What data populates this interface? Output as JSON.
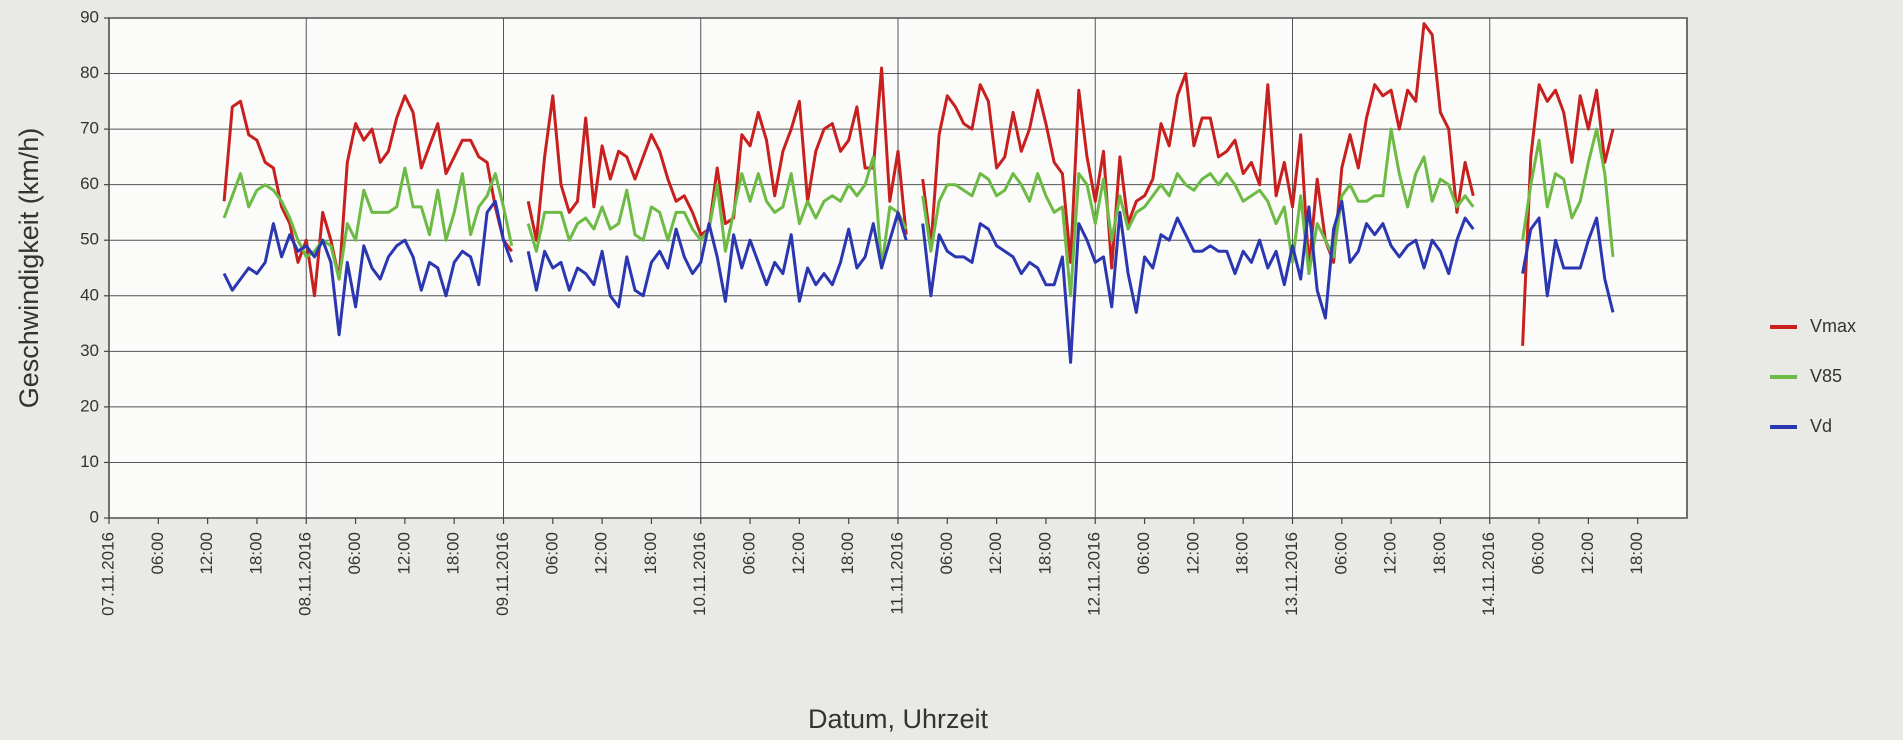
{
  "chart_data": {
    "type": "line",
    "xlabel": "Datum, Uhrzeit",
    "ylabel": "Geschwindigkeit (km/h)",
    "xlim": [
      0,
      192
    ],
    "ylim": [
      0,
      90
    ],
    "yticks": [
      0,
      10,
      20,
      30,
      40,
      50,
      60,
      70,
      80,
      90
    ],
    "xticks": [
      {
        "value": 0,
        "label": "07.11.2016"
      },
      {
        "value": 6,
        "label": "06:00"
      },
      {
        "value": 12,
        "label": "12:00"
      },
      {
        "value": 18,
        "label": "18:00"
      },
      {
        "value": 24,
        "label": "08.11.2016"
      },
      {
        "value": 30,
        "label": "06:00"
      },
      {
        "value": 36,
        "label": "12:00"
      },
      {
        "value": 42,
        "label": "18:00"
      },
      {
        "value": 48,
        "label": "09.11.2016"
      },
      {
        "value": 54,
        "label": "06:00"
      },
      {
        "value": 60,
        "label": "12:00"
      },
      {
        "value": 66,
        "label": "18:00"
      },
      {
        "value": 72,
        "label": "10.11.2016"
      },
      {
        "value": 78,
        "label": "06:00"
      },
      {
        "value": 84,
        "label": "12:00"
      },
      {
        "value": 90,
        "label": "18:00"
      },
      {
        "value": 96,
        "label": "11.11.2016"
      },
      {
        "value": 102,
        "label": "06:00"
      },
      {
        "value": 108,
        "label": "12:00"
      },
      {
        "value": 114,
        "label": "18:00"
      },
      {
        "value": 120,
        "label": "12.11.2016"
      },
      {
        "value": 126,
        "label": "06:00"
      },
      {
        "value": 132,
        "label": "12:00"
      },
      {
        "value": 138,
        "label": "18:00"
      },
      {
        "value": 144,
        "label": "13.11.2016"
      },
      {
        "value": 150,
        "label": "06:00"
      },
      {
        "value": 156,
        "label": "12:00"
      },
      {
        "value": 162,
        "label": "18:00"
      },
      {
        "value": 168,
        "label": "14.11.2016"
      },
      {
        "value": 174,
        "label": "06:00"
      },
      {
        "value": 180,
        "label": "12:00"
      },
      {
        "value": 186,
        "label": "18:00"
      }
    ],
    "xgrid_every": 24,
    "grid": true,
    "legend": "right",
    "x": [
      14,
      15,
      16,
      17,
      18,
      19,
      20,
      21,
      22,
      23,
      24,
      25,
      26,
      27,
      28,
      29,
      30,
      31,
      32,
      33,
      34,
      35,
      36,
      37,
      38,
      39,
      40,
      41,
      42,
      43,
      44,
      45,
      46,
      47,
      48,
      49,
      50,
      51,
      52,
      53,
      54,
      55,
      56,
      57,
      58,
      59,
      60,
      61,
      62,
      63,
      64,
      65,
      66,
      67,
      68,
      69,
      70,
      71,
      72,
      73,
      74,
      75,
      76,
      77,
      78,
      79,
      80,
      81,
      82,
      83,
      84,
      85,
      86,
      87,
      88,
      89,
      90,
      91,
      92,
      93,
      94,
      95,
      96,
      97,
      98,
      99,
      100,
      101,
      102,
      103,
      104,
      105,
      106,
      107,
      108,
      109,
      110,
      111,
      112,
      113,
      114,
      115,
      116,
      117,
      118,
      119,
      120,
      121,
      122,
      123,
      124,
      125,
      126,
      127,
      128,
      129,
      130,
      131,
      132,
      133,
      134,
      135,
      136,
      137,
      138,
      139,
      140,
      141,
      142,
      143,
      144,
      145,
      146,
      147,
      148,
      149,
      150,
      151,
      152,
      153,
      154,
      155,
      156,
      157,
      158,
      159,
      160,
      161,
      162,
      163,
      164,
      165,
      166,
      167,
      168,
      169,
      170,
      171,
      172,
      173,
      174,
      175,
      176,
      177,
      178,
      179,
      180,
      181,
      182,
      183
    ],
    "series": [
      {
        "name": "Vmax",
        "color": "#c8201e",
        "values": [
          57,
          74,
          75,
          69,
          68,
          64,
          63,
          56,
          53,
          46,
          50,
          40,
          55,
          50,
          43,
          64,
          71,
          68,
          70,
          64,
          66,
          72,
          76,
          73,
          63,
          67,
          71,
          62,
          65,
          68,
          68,
          65,
          64,
          56,
          50,
          48,
          null,
          57,
          50,
          65,
          76,
          60,
          55,
          57,
          72,
          56,
          67,
          61,
          66,
          65,
          61,
          65,
          69,
          66,
          61,
          57,
          58,
          55,
          51,
          52,
          63,
          53,
          54,
          69,
          67,
          73,
          68,
          58,
          66,
          70,
          75,
          57,
          66,
          70,
          71,
          66,
          68,
          74,
          63,
          63,
          81,
          57,
          66,
          51,
          null,
          61,
          49,
          69,
          76,
          74,
          71,
          70,
          78,
          75,
          63,
          65,
          73,
          66,
          70,
          77,
          71,
          64,
          62,
          46,
          77,
          65,
          57,
          66,
          45,
          65,
          53,
          57,
          58,
          61,
          71,
          67,
          76,
          80,
          67,
          72,
          72,
          65,
          66,
          68,
          62,
          64,
          60,
          78,
          58,
          64,
          56,
          69,
          45,
          61,
          50,
          46,
          63,
          69,
          63,
          72,
          78,
          76,
          77,
          70,
          77,
          75,
          89,
          87,
          73,
          70,
          55,
          64,
          58,
          null,
          null,
          null,
          null,
          null,
          31,
          65,
          78,
          75,
          77,
          73,
          64,
          76,
          70,
          77,
          64,
          70
        ]
      },
      {
        "name": "V85",
        "color": "#6dbb45",
        "values": [
          54,
          58,
          62,
          56,
          59,
          60,
          59,
          57,
          54,
          50,
          47,
          48,
          50,
          49,
          43,
          53,
          50,
          59,
          55,
          55,
          55,
          56,
          63,
          56,
          56,
          51,
          59,
          50,
          55,
          62,
          51,
          56,
          58,
          62,
          56,
          49,
          null,
          53,
          48,
          55,
          55,
          55,
          50,
          53,
          54,
          52,
          56,
          52,
          53,
          59,
          51,
          50,
          56,
          55,
          50,
          55,
          55,
          52,
          50,
          52,
          60,
          48,
          55,
          62,
          57,
          62,
          57,
          55,
          56,
          62,
          53,
          57,
          54,
          57,
          58,
          57,
          60,
          58,
          60,
          65,
          45,
          56,
          55,
          52,
          null,
          58,
          48,
          57,
          60,
          60,
          59,
          58,
          62,
          61,
          58,
          59,
          62,
          60,
          57,
          62,
          58,
          55,
          56,
          40,
          62,
          60,
          53,
          61,
          50,
          58,
          52,
          55,
          56,
          58,
          60,
          58,
          62,
          60,
          59,
          61,
          62,
          60,
          62,
          60,
          57,
          58,
          59,
          57,
          53,
          56,
          46,
          58,
          44,
          53,
          50,
          47,
          58,
          60,
          57,
          57,
          58,
          58,
          70,
          62,
          56,
          62,
          65,
          57,
          61,
          60,
          56,
          58,
          56,
          null,
          null,
          null,
          null,
          null,
          50,
          60,
          68,
          56,
          62,
          61,
          54,
          57,
          64,
          70,
          62,
          47
        ]
      },
      {
        "name": "Vd",
        "color": "#2a37b0",
        "values": [
          44,
          41,
          43,
          45,
          44,
          46,
          53,
          47,
          51,
          48,
          49,
          47,
          50,
          46,
          33,
          46,
          38,
          49,
          45,
          43,
          47,
          49,
          50,
          47,
          41,
          46,
          45,
          40,
          46,
          48,
          47,
          42,
          55,
          57,
          50,
          46,
          null,
          48,
          41,
          48,
          45,
          46,
          41,
          45,
          44,
          42,
          48,
          40,
          38,
          47,
          41,
          40,
          46,
          48,
          45,
          52,
          47,
          44,
          46,
          53,
          47,
          39,
          51,
          45,
          50,
          46,
          42,
          46,
          44,
          51,
          39,
          45,
          42,
          44,
          42,
          46,
          52,
          45,
          47,
          53,
          45,
          50,
          55,
          50,
          null,
          53,
          40,
          51,
          48,
          47,
          47,
          46,
          53,
          52,
          49,
          48,
          47,
          44,
          46,
          45,
          42,
          42,
          47,
          28,
          53,
          50,
          46,
          47,
          38,
          55,
          44,
          37,
          47,
          45,
          51,
          50,
          54,
          51,
          48,
          48,
          49,
          48,
          48,
          44,
          48,
          46,
          50,
          45,
          48,
          42,
          49,
          43,
          56,
          41,
          36,
          52,
          57,
          46,
          48,
          53,
          51,
          53,
          49,
          47,
          49,
          50,
          45,
          50,
          48,
          44,
          50,
          54,
          52,
          null,
          null,
          null,
          null,
          null,
          44,
          52,
          54,
          40,
          50,
          45,
          45,
          45,
          50,
          54,
          43,
          37
        ]
      }
    ]
  }
}
